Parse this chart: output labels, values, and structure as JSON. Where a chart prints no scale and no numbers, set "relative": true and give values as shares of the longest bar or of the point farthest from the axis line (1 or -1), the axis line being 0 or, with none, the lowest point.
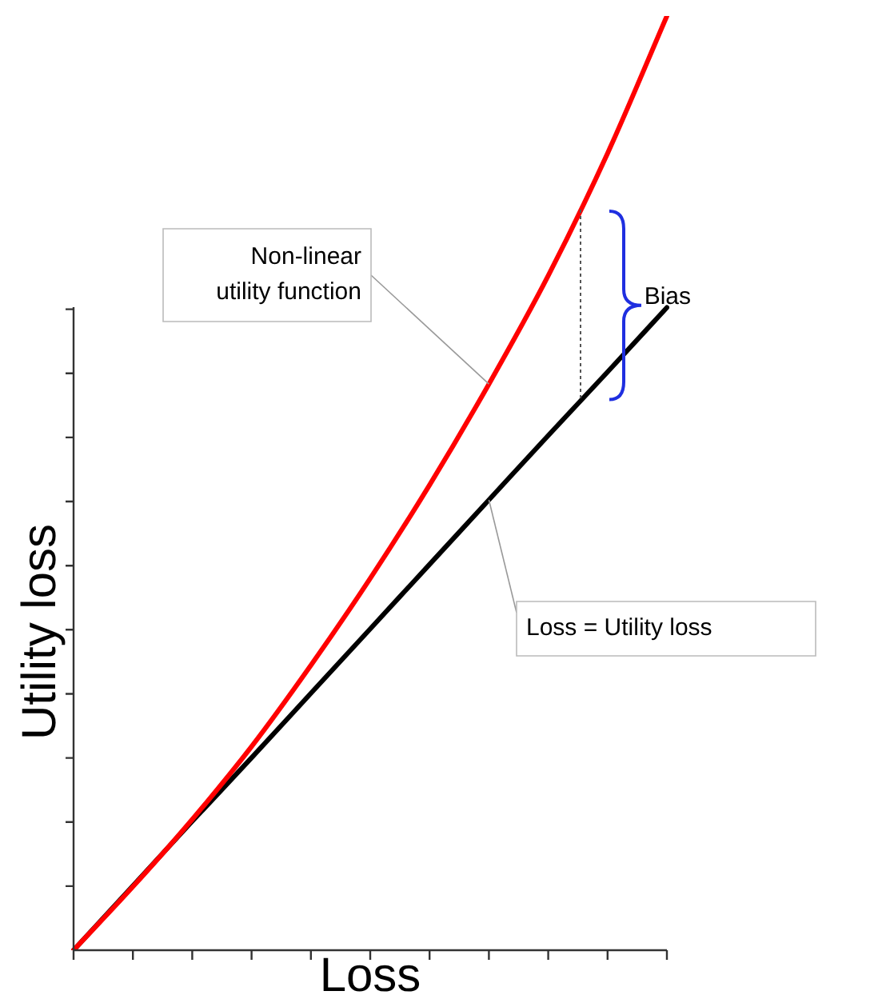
{
  "chart_data": {
    "type": "line",
    "xlabel": "Loss",
    "ylabel": "Utility loss",
    "relative": true,
    "grid": false,
    "legend": false,
    "marker": "none",
    "line_style": "solid",
    "categories": [
      null,
      null,
      null,
      null,
      null,
      null,
      null,
      null,
      null,
      null,
      null
    ],
    "series": [
      {
        "color": "#ff0000",
        "values": [
          0,
          0.068,
          0.14,
          0.218,
          0.305,
          0.398,
          0.498,
          0.606,
          0.722,
          0.853,
          1
        ]
      },
      {
        "color": "#000000",
        "values": [
          0,
          0.069,
          0.138,
          0.206,
          0.275,
          0.344,
          0.413,
          0.482,
          0.551,
          0.619,
          0.688
        ]
      }
    ],
    "annotations": [
      "Non-linear\nutility function",
      "Loss = Utility loss",
      "Bias"
    ]
  }
}
